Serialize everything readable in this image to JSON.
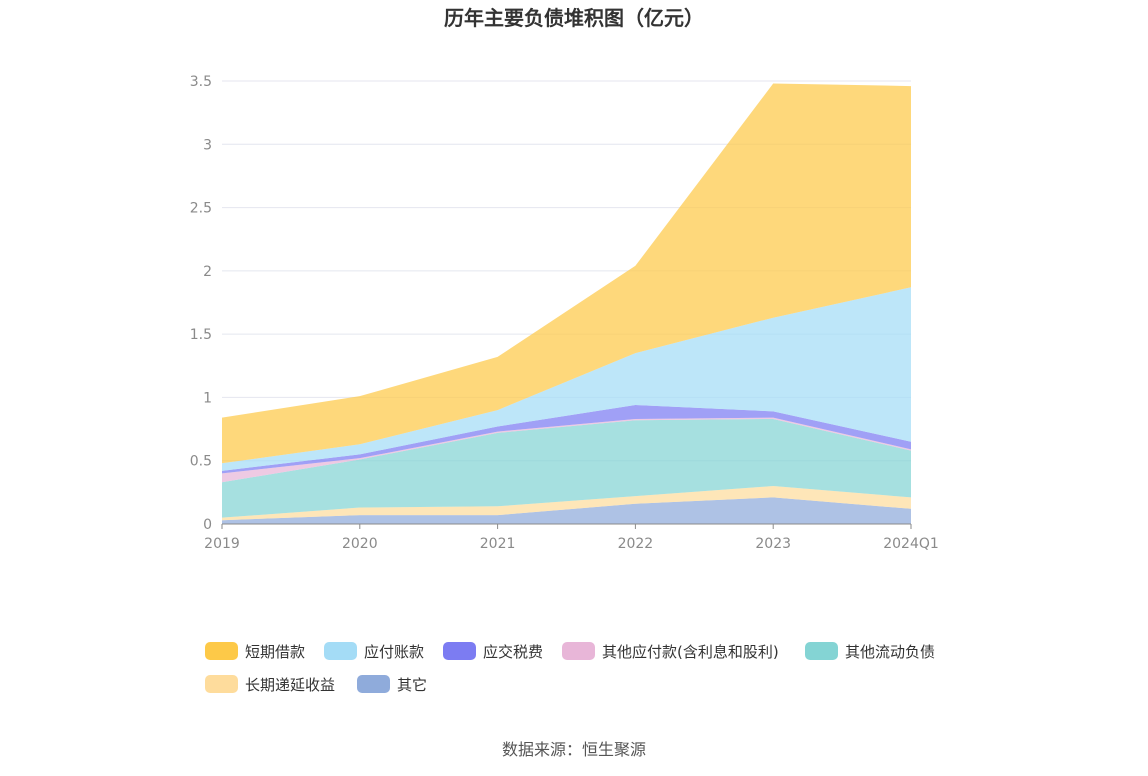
{
  "colors": {
    "短期借款": "#fdc948",
    "应付账款": "#a4dcf6",
    "应交税费": "#7c7cf2",
    "其他应付款(含利息和股利)": "#e8b6d8",
    "其他流动负债": "#84d4d4",
    "长期递延收益": "#fedc9c",
    "其它": "#8fabdb",
    "grid": "#e4e6ef",
    "axis": "#8a8a8a"
  },
  "chart_data": {
    "type": "area",
    "stacked": true,
    "title": "历年主要负债堆积图（亿元）",
    "categories": [
      "2019",
      "2020",
      "2021",
      "2022",
      "2023",
      "2024Q1"
    ],
    "y_ticks": [
      "0",
      "0.5",
      "1",
      "1.5",
      "2",
      "2.5",
      "3",
      "3.5"
    ],
    "ylim": [
      0,
      3.5
    ],
    "grid": true,
    "legend_position": "bottom",
    "series": [
      {
        "name": "其它",
        "values": [
          0.03,
          0.07,
          0.07,
          0.16,
          0.21,
          0.12
        ]
      },
      {
        "name": "长期递延收益",
        "values": [
          0.02,
          0.06,
          0.07,
          0.06,
          0.09,
          0.09
        ]
      },
      {
        "name": "其他流动负债",
        "values": [
          0.28,
          0.38,
          0.58,
          0.6,
          0.53,
          0.37
        ]
      },
      {
        "name": "其他应付款(含利息和股利)",
        "values": [
          0.07,
          0.01,
          0.01,
          0.01,
          0.01,
          0.01
        ]
      },
      {
        "name": "应交税费",
        "values": [
          0.02,
          0.03,
          0.04,
          0.11,
          0.05,
          0.06
        ]
      },
      {
        "name": "应付账款",
        "values": [
          0.06,
          0.08,
          0.13,
          0.41,
          0.74,
          1.22
        ]
      },
      {
        "name": "短期借款",
        "values": [
          0.36,
          0.38,
          0.42,
          0.69,
          1.85,
          1.59
        ]
      }
    ],
    "legend_order": [
      "短期借款",
      "应付账款",
      "应交税费",
      "其他应付款(含利息和股利)",
      "其他流动负债",
      "长期递延收益",
      "其它"
    ]
  },
  "source_text": "数据来源：恒生聚源"
}
